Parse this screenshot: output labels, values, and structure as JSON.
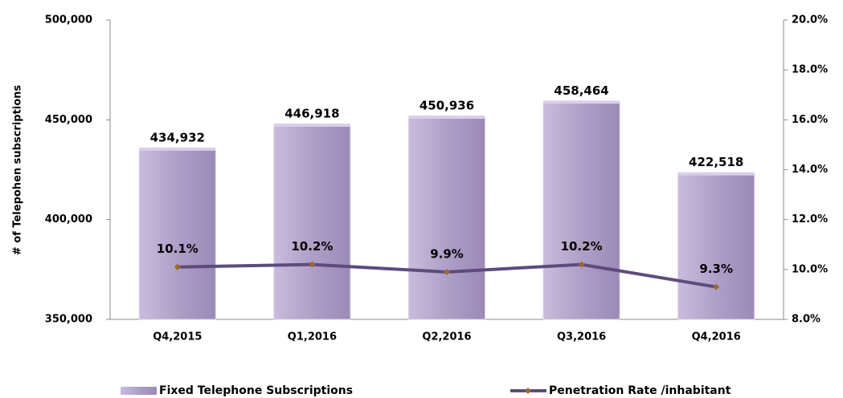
{
  "chart_data": {
    "type": "bar",
    "y_axis_label": "# of Telepohen subscriptions",
    "categories": [
      "Q4,2015",
      "Q1,2016",
      "Q2,2016",
      "Q3,2016",
      "Q4,2016"
    ],
    "series": [
      {
        "name": "Fixed Telephone Subscriptions",
        "type": "bar",
        "axis": "y",
        "color": "#ae9fc7",
        "values": [
          434932,
          446918,
          450936,
          458464,
          422518
        ],
        "value_labels": [
          "434,932",
          "446,918",
          "450,936",
          "458,464",
          "422,518"
        ]
      },
      {
        "name": "Penetration Rate /inhabitant",
        "type": "line",
        "axis": "y2",
        "color": "#5e4b7d",
        "marker_color": "#9a6a2e",
        "values": [
          10.1,
          10.2,
          9.9,
          10.2,
          9.3
        ],
        "value_labels": [
          "10.1%",
          "10.2%",
          "9.9%",
          "10.2%",
          "9.3%"
        ]
      }
    ],
    "ylim": [
      350000,
      500000
    ],
    "yticks": [
      {
        "value": 350000,
        "label": "350,000"
      },
      {
        "value": 400000,
        "label": "400,000"
      },
      {
        "value": 450000,
        "label": "450,000"
      },
      {
        "value": 500000,
        "label": "500,000"
      }
    ],
    "y2lim": [
      8,
      20
    ],
    "y2ticks": [
      {
        "value": 8,
        "label": "8.0%"
      },
      {
        "value": 10,
        "label": "10.0%"
      },
      {
        "value": 12,
        "label": "12.0%"
      },
      {
        "value": 14,
        "label": "14.0%"
      },
      {
        "value": 16,
        "label": "16.0%"
      },
      {
        "value": 18,
        "label": "18.0%"
      },
      {
        "value": 20,
        "label": "20.0%"
      }
    ],
    "legend": "bottom"
  }
}
